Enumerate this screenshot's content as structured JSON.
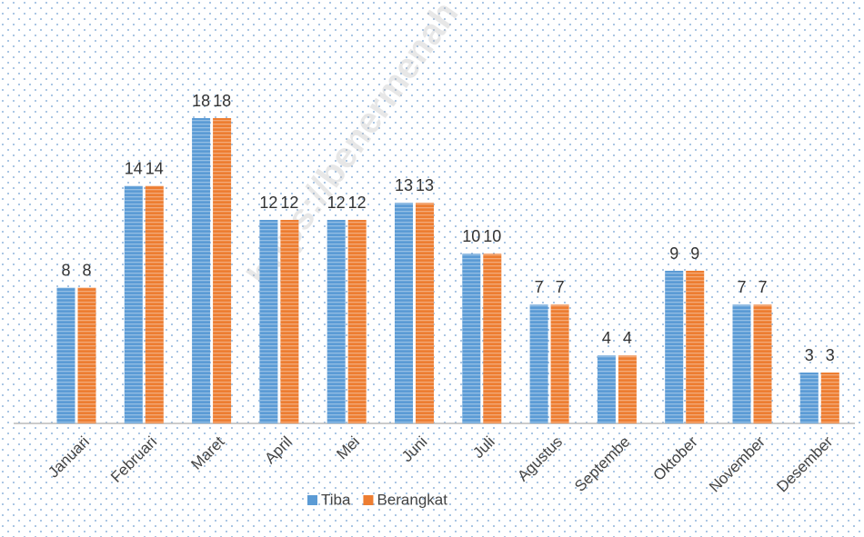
{
  "chart_data": {
    "type": "bar",
    "watermark": "https://benermenah",
    "categories": [
      "Januari",
      "Februari",
      "Maret",
      "April",
      "Mei",
      "Juni",
      "Juli",
      "Agustus",
      "Septembe",
      "Oktober",
      "November",
      "Desember"
    ],
    "series": [
      {
        "name": "Tiba",
        "color": "#5b9bd5",
        "values": [
          8,
          14,
          18,
          12,
          12,
          13,
          10,
          7,
          4,
          9,
          7,
          3
        ]
      },
      {
        "name": "Berangkat",
        "color": "#ed7d31",
        "values": [
          8,
          14,
          18,
          12,
          12,
          13,
          10,
          7,
          4,
          9,
          7,
          3
        ]
      }
    ],
    "legend": "bottom"
  }
}
